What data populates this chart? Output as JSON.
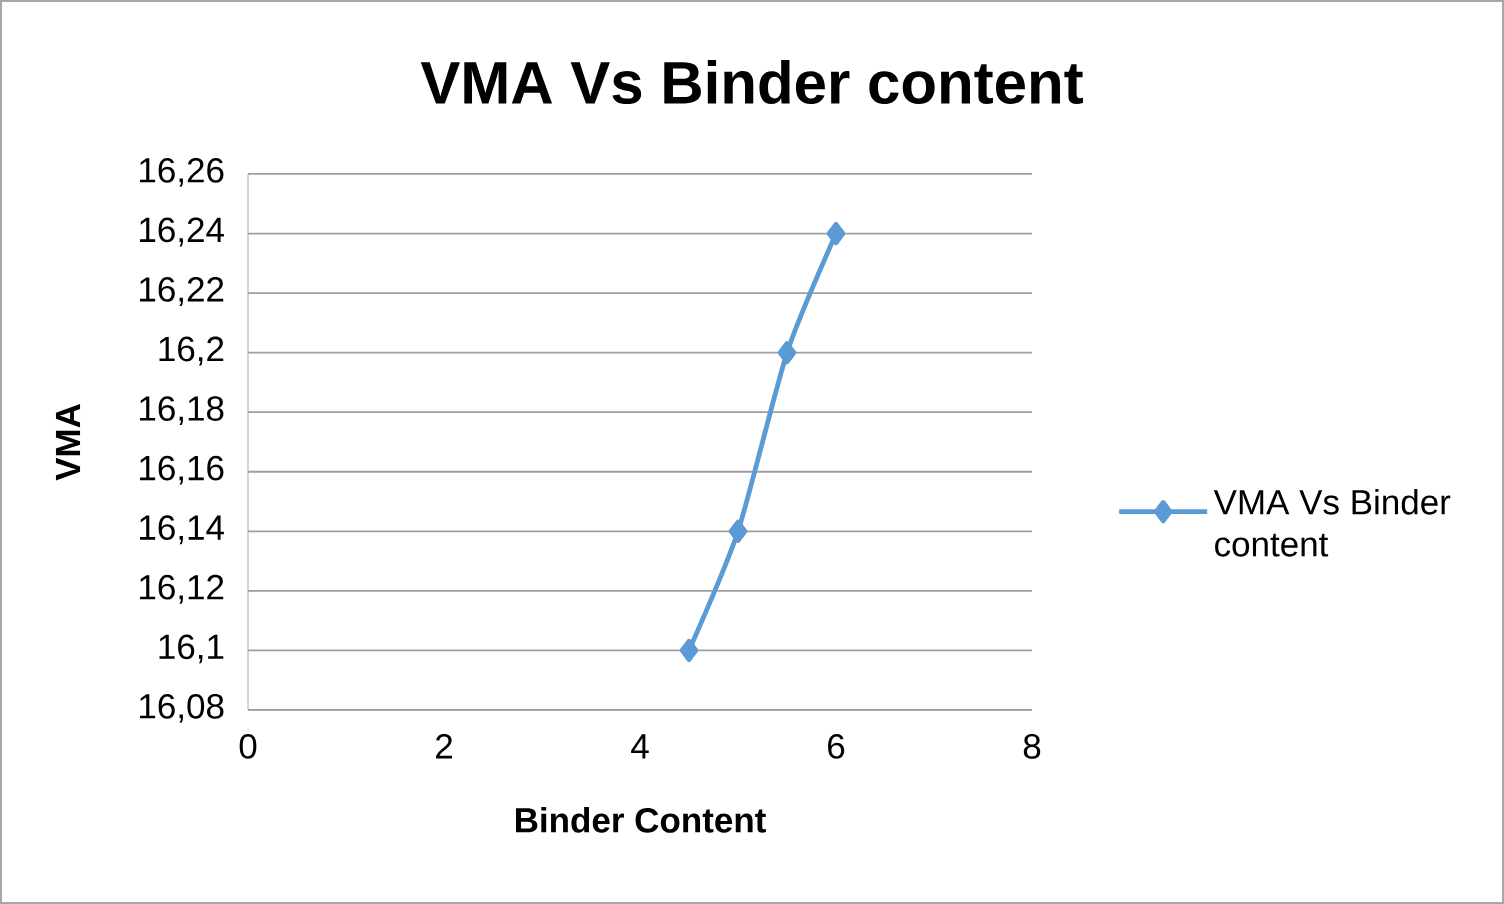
{
  "chart_data": {
    "type": "line",
    "title": "VMA Vs Binder content",
    "xlabel": "Binder Content",
    "ylabel": "VMA",
    "series": [
      {
        "name": "VMA Vs Binder content",
        "color": "#5b9bd5",
        "x": [
          4.5,
          5,
          5.5,
          6
        ],
        "values": [
          16.1,
          16.14,
          16.2,
          16.24
        ]
      }
    ],
    "xlim": [
      0,
      8
    ],
    "xticks": [
      0,
      2,
      4,
      6,
      8
    ],
    "ylim": [
      16.08,
      16.26
    ],
    "yticks": [
      {
        "value": 16.08,
        "label": "16,08"
      },
      {
        "value": 16.1,
        "label": "16,1"
      },
      {
        "value": 16.12,
        "label": "16,12"
      },
      {
        "value": 16.14,
        "label": "16,14"
      },
      {
        "value": 16.16,
        "label": "16,16"
      },
      {
        "value": 16.18,
        "label": "16,18"
      },
      {
        "value": 16.2,
        "label": "16,2"
      },
      {
        "value": 16.22,
        "label": "16,22"
      },
      {
        "value": 16.24,
        "label": "16,24"
      },
      {
        "value": 16.26,
        "label": "16,26"
      }
    ],
    "grid": "y",
    "legend": "right",
    "marker": "diamond"
  }
}
